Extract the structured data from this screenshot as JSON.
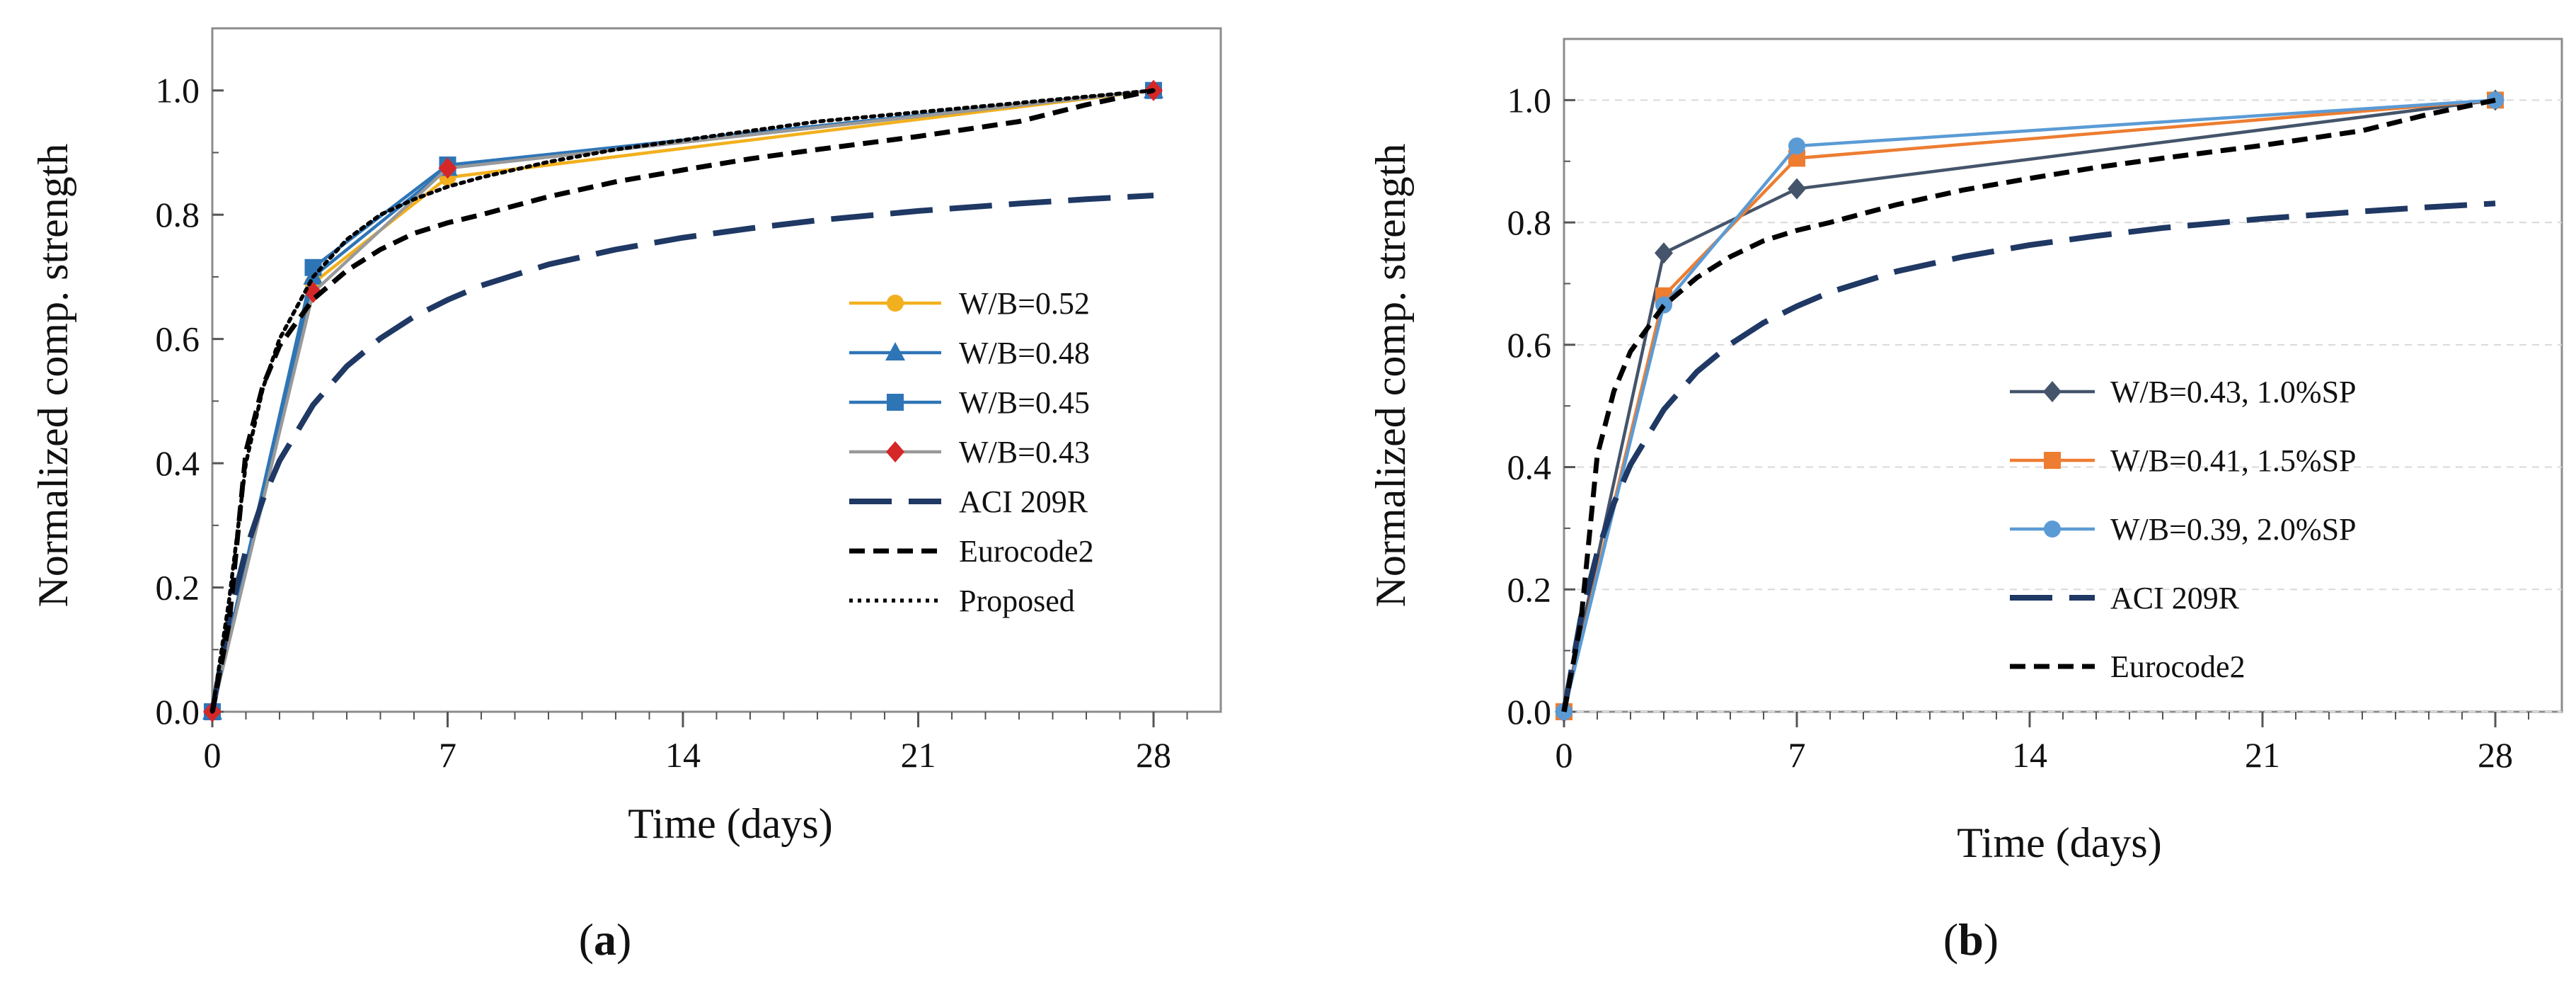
{
  "chart_data": [
    {
      "type": "line",
      "panel_label": "a",
      "xlabel": "Time (days)",
      "ylabel": "Normalized comp. strength",
      "xlim": [
        0,
        30
      ],
      "ylim": [
        0,
        1.1
      ],
      "xticks": [
        "0",
        "7",
        "14",
        "21",
        "28"
      ],
      "yticks": [
        "0.0",
        "0.2",
        "0.4",
        "0.6",
        "0.8",
        "1.0"
      ],
      "legend_position": "bottom-right",
      "series": [
        {
          "name": "W/B=0.52",
          "x": [
            0,
            3,
            7,
            28
          ],
          "y": [
            0,
            0.69,
            0.86,
            1.0
          ],
          "color": "#F2B01E",
          "marker": "circle",
          "style": "solid"
        },
        {
          "name": "W/B=0.48",
          "x": [
            0,
            3,
            7,
            28
          ],
          "y": [
            0,
            0.7,
            0.875,
            1.0
          ],
          "color": "#2E75B6",
          "marker": "triangle",
          "style": "solid"
        },
        {
          "name": "W/B=0.45",
          "x": [
            0,
            3,
            7,
            28
          ],
          "y": [
            0,
            0.715,
            0.88,
            1.0
          ],
          "color": "#2E75B6",
          "marker": "square",
          "style": "solid"
        },
        {
          "name": "W/B=0.43",
          "x": [
            0,
            3,
            7,
            28
          ],
          "y": [
            0,
            0.675,
            0.875,
            1.0
          ],
          "color": "#D62728",
          "marker": "diamond",
          "style": "solid",
          "line_color": "#999999"
        },
        {
          "name": "ACI 209R",
          "x": [
            0,
            0.5,
            1,
            1.5,
            2,
            3,
            4,
            5,
            6,
            7,
            8,
            10,
            12,
            14,
            16,
            18,
            21,
            24,
            26,
            28
          ],
          "y": [
            0,
            0.152,
            0.26,
            0.341,
            0.404,
            0.494,
            0.556,
            0.601,
            0.636,
            0.663,
            0.686,
            0.72,
            0.744,
            0.763,
            0.778,
            0.791,
            0.806,
            0.818,
            0.825,
            0.831
          ],
          "color": "#1F3864",
          "style": "longdash"
        },
        {
          "name": "Eurocode2",
          "x": [
            0,
            0.5,
            1,
            1.5,
            2,
            3,
            4,
            5,
            6,
            7,
            8,
            10,
            12,
            14,
            16,
            18,
            21,
            24,
            26,
            28
          ],
          "y": [
            0,
            0.143,
            0.419,
            0.524,
            0.589,
            0.664,
            0.71,
            0.744,
            0.77,
            0.787,
            0.8,
            0.829,
            0.853,
            0.872,
            0.89,
            0.905,
            0.926,
            0.95,
            0.977,
            1.0
          ],
          "color": "#000000",
          "style": "dash"
        },
        {
          "name": "Proposed",
          "x": [
            0,
            0.5,
            1,
            1.5,
            2,
            3,
            4,
            5,
            6,
            7,
            8,
            10,
            12,
            14,
            16,
            18,
            21,
            24,
            26,
            28
          ],
          "y": [
            0,
            0.18,
            0.4,
            0.52,
            0.6,
            0.7,
            0.76,
            0.8,
            0.825,
            0.845,
            0.86,
            0.885,
            0.905,
            0.92,
            0.935,
            0.95,
            0.965,
            0.98,
            0.99,
            1.0
          ],
          "color": "#000000",
          "style": "dot"
        }
      ]
    },
    {
      "type": "line",
      "panel_label": "b",
      "xlabel": "Time (days)",
      "ylabel": "Normalized comp. strength",
      "xlim": [
        0,
        30
      ],
      "ylim": [
        0,
        1.1
      ],
      "xticks": [
        "0",
        "7",
        "14",
        "21",
        "28"
      ],
      "yticks": [
        "0.0",
        "0.2",
        "0.4",
        "0.6",
        "0.8",
        "1.0"
      ],
      "grid": true,
      "legend_position": "bottom-right",
      "series": [
        {
          "name": "W/B=0.43, 1.0%SP",
          "x": [
            0,
            3,
            7,
            28
          ],
          "y": [
            0,
            0.75,
            0.855,
            1.0
          ],
          "color": "#44546A",
          "marker": "diamond",
          "style": "solid"
        },
        {
          "name": "W/B=0.41, 1.5%SP",
          "x": [
            0,
            3,
            7,
            28
          ],
          "y": [
            0,
            0.68,
            0.905,
            1.0
          ],
          "color": "#ED7D31",
          "marker": "square",
          "style": "solid"
        },
        {
          "name": "W/B=0.39, 2.0%SP",
          "x": [
            0,
            3,
            7,
            28
          ],
          "y": [
            0,
            0.665,
            0.925,
            1.0
          ],
          "color": "#5B9BD5",
          "marker": "circle",
          "style": "solid"
        },
        {
          "name": "ACI 209R",
          "x": [
            0,
            0.5,
            1,
            1.5,
            2,
            3,
            4,
            5,
            6,
            7,
            8,
            10,
            12,
            14,
            16,
            18,
            21,
            24,
            26,
            28
          ],
          "y": [
            0,
            0.152,
            0.26,
            0.341,
            0.404,
            0.494,
            0.556,
            0.601,
            0.636,
            0.663,
            0.686,
            0.72,
            0.744,
            0.763,
            0.778,
            0.791,
            0.806,
            0.818,
            0.825,
            0.831
          ],
          "color": "#1F3864",
          "style": "longdash"
        },
        {
          "name": "Eurocode2",
          "x": [
            0,
            0.5,
            1,
            1.5,
            2,
            3,
            4,
            5,
            6,
            7,
            8,
            10,
            12,
            14,
            16,
            18,
            21,
            24,
            26,
            28
          ],
          "y": [
            0,
            0.143,
            0.419,
            0.524,
            0.589,
            0.664,
            0.71,
            0.744,
            0.77,
            0.787,
            0.8,
            0.829,
            0.853,
            0.872,
            0.89,
            0.905,
            0.926,
            0.95,
            0.977,
            1.0
          ],
          "color": "#000000",
          "style": "dash"
        }
      ]
    }
  ]
}
